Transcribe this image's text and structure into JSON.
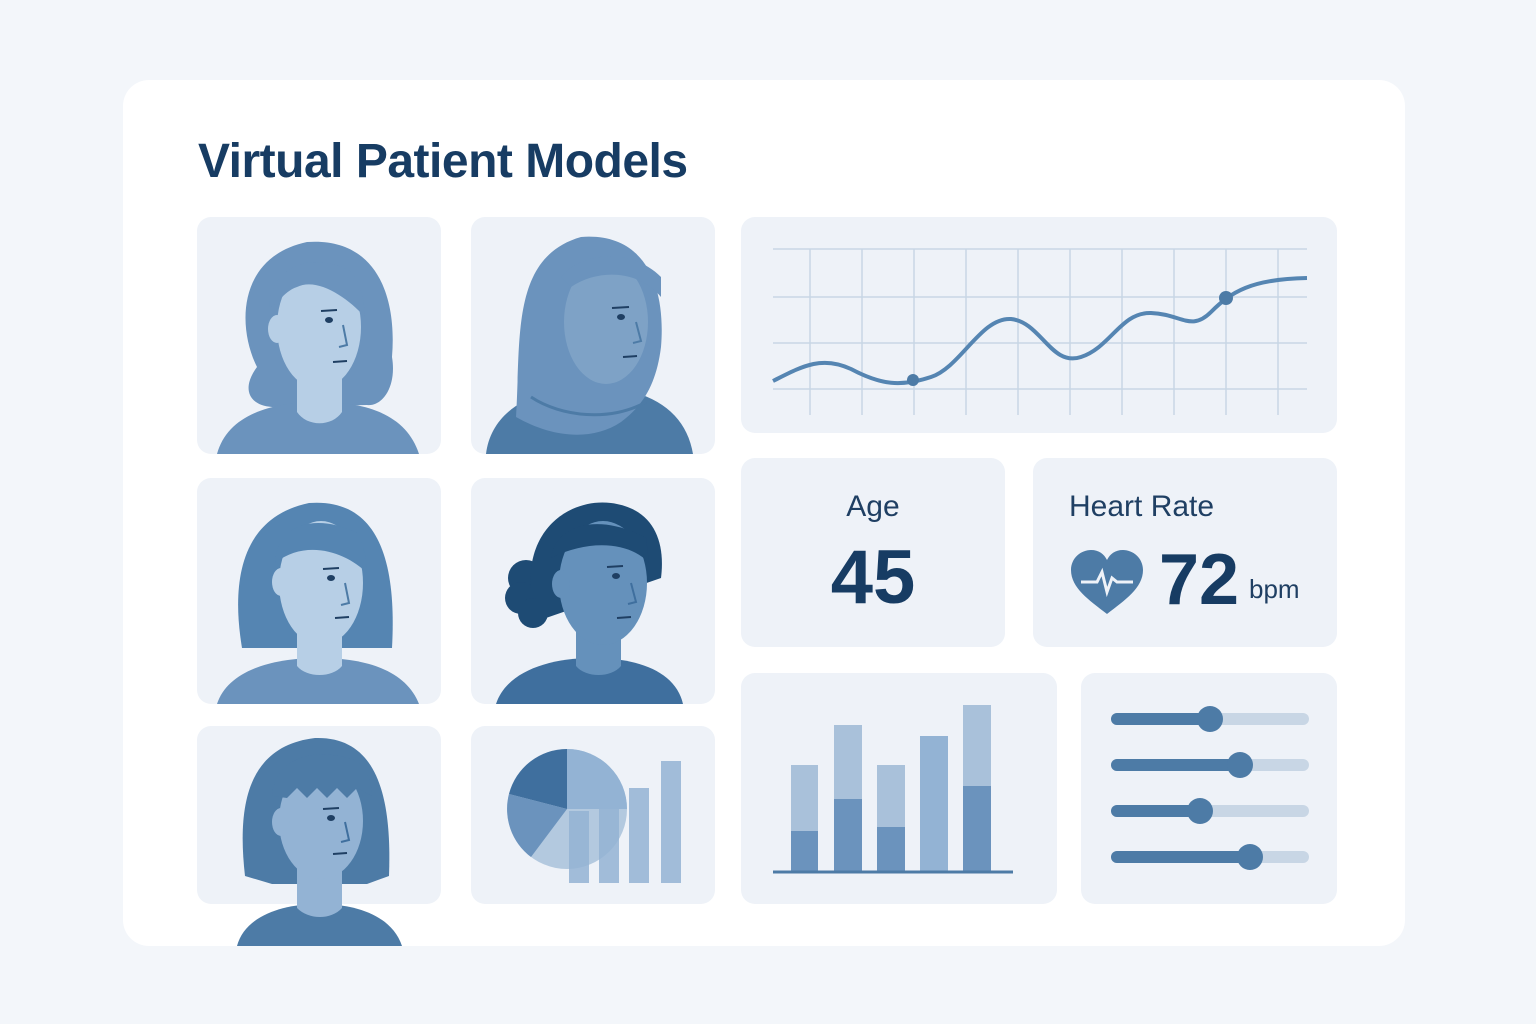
{
  "page": {
    "title": "Virtual Patient Models"
  },
  "patients": [
    {
      "id": "patient-1",
      "skin": "#b7cfe6",
      "hair": "#6b93bd",
      "shirt": "#6b93bd"
    },
    {
      "id": "patient-2",
      "skin": "#7ea2c6",
      "hair": "#6b93bd",
      "shirt": "#4d7ba6",
      "headscarf": true
    },
    {
      "id": "patient-3",
      "skin": "#b7cfe6",
      "hair": "#5585b2",
      "shirt": "#6b93bd"
    },
    {
      "id": "patient-4",
      "skin": "#6591bb",
      "hair": "#1e4b74",
      "shirt": "#3f6f9e"
    },
    {
      "id": "patient-5",
      "skin": "#93b3d4",
      "hair": "#4d7ba6",
      "shirt": "#4d7ba6"
    }
  ],
  "stats": {
    "age": {
      "label": "Age",
      "value": "45"
    },
    "heart_rate": {
      "label": "Heart Rate",
      "value": "72",
      "unit": "bpm",
      "icon": "heart-pulse-icon"
    }
  },
  "sliders": [
    {
      "name": "slider-1",
      "value": 0.5
    },
    {
      "name": "slider-2",
      "value": 0.65
    },
    {
      "name": "slider-3",
      "value": 0.45
    },
    {
      "name": "slider-4",
      "value": 0.7
    }
  ],
  "colors": {
    "accent": "#4d7ba6",
    "dark": "#173c63",
    "tile": "#eef2f8",
    "light": "#b3c9df"
  }
}
